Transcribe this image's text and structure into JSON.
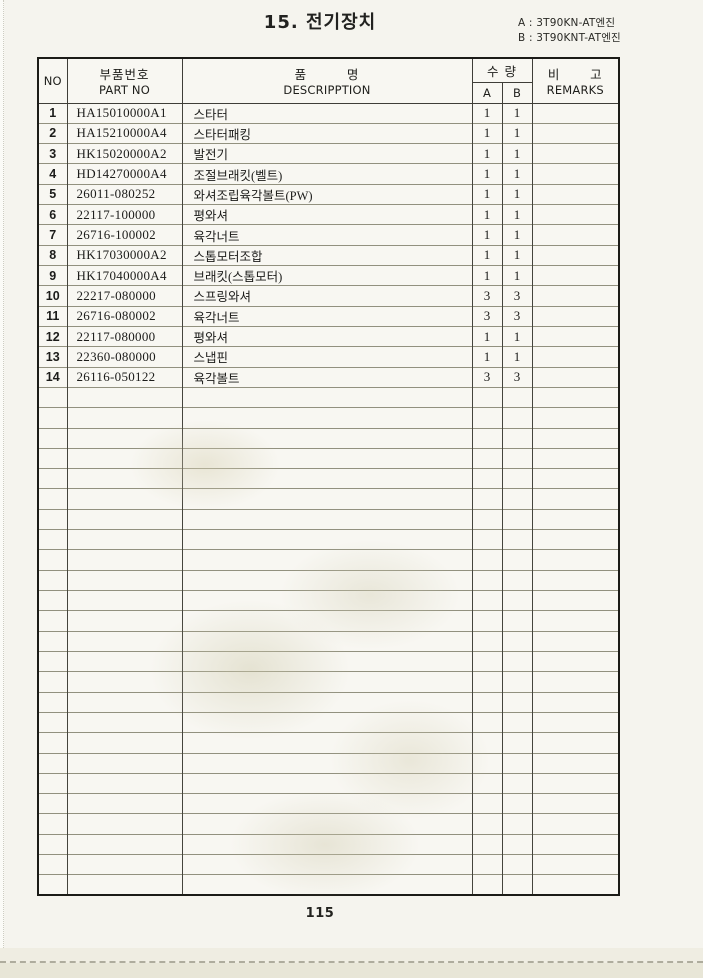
{
  "page": {
    "title": "15. 전기장치",
    "engine_labels": [
      "A : 3T90KN-AT엔진",
      "B : 3T90KNT-AT엔진"
    ],
    "page_number": "115"
  },
  "table": {
    "headers": {
      "no": "NO",
      "part_no_ko": "부품번호",
      "part_no_en": "PART NO",
      "desc_ko": "품        명",
      "desc_en": "DESCRIPPTION",
      "qty_ko": "수 량",
      "qty_a": "A",
      "qty_b": "B",
      "remarks_ko": "비      고",
      "remarks_en": "REMARKS"
    },
    "rows": [
      {
        "no": "1",
        "part_no": "HA15010000A1",
        "description": "스타터",
        "qty_a": "1",
        "qty_b": "1",
        "remarks": ""
      },
      {
        "no": "2",
        "part_no": "HA15210000A4",
        "description": "스타터패킹",
        "qty_a": "1",
        "qty_b": "1",
        "remarks": ""
      },
      {
        "no": "3",
        "part_no": "HK15020000A2",
        "description": "발전기",
        "qty_a": "1",
        "qty_b": "1",
        "remarks": ""
      },
      {
        "no": "4",
        "part_no": "HD14270000A4",
        "description": "조절브래킷(벨트)",
        "qty_a": "1",
        "qty_b": "1",
        "remarks": ""
      },
      {
        "no": "5",
        "part_no": "26011-080252",
        "description": "와셔조립육각볼트(PW)",
        "qty_a": "1",
        "qty_b": "1",
        "remarks": ""
      },
      {
        "no": "6",
        "part_no": "22117-100000",
        "description": "평와셔",
        "qty_a": "1",
        "qty_b": "1",
        "remarks": ""
      },
      {
        "no": "7",
        "part_no": "26716-100002",
        "description": "육각너트",
        "qty_a": "1",
        "qty_b": "1",
        "remarks": ""
      },
      {
        "no": "8",
        "part_no": "HK17030000A2",
        "description": "스톱모터조합",
        "qty_a": "1",
        "qty_b": "1",
        "remarks": ""
      },
      {
        "no": "9",
        "part_no": "HK17040000A4",
        "description": "브래킷(스톱모터)",
        "qty_a": "1",
        "qty_b": "1",
        "remarks": ""
      },
      {
        "no": "10",
        "part_no": "22217-080000",
        "description": "스프링와셔",
        "qty_a": "3",
        "qty_b": "3",
        "remarks": ""
      },
      {
        "no": "11",
        "part_no": "26716-080002",
        "description": "육각너트",
        "qty_a": "3",
        "qty_b": "3",
        "remarks": ""
      },
      {
        "no": "12",
        "part_no": "22117-080000",
        "description": "평와셔",
        "qty_a": "1",
        "qty_b": "1",
        "remarks": ""
      },
      {
        "no": "13",
        "part_no": "22360-080000",
        "description": "스냅핀",
        "qty_a": "1",
        "qty_b": "1",
        "remarks": ""
      },
      {
        "no": "14",
        "part_no": "26116-050122",
        "description": "육각볼트",
        "qty_a": "3",
        "qty_b": "3",
        "remarks": ""
      }
    ],
    "empty_row_count": 25
  }
}
